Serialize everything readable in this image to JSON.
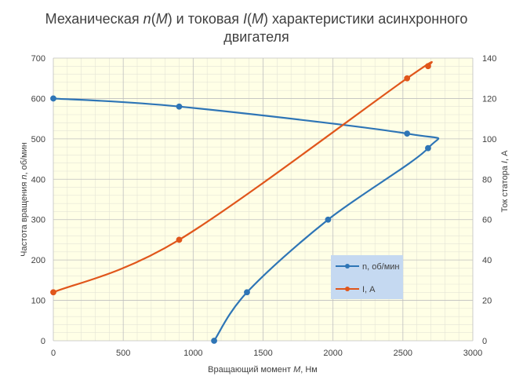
{
  "chart_data": {
    "type": "line",
    "title": {
      "line1_a": "Механическая ",
      "line1_n": "n",
      "line1_b": "(",
      "line1_m1": "M",
      "line1_c": ") и токовая  ",
      "line1_i": "I",
      "line1_d": "(",
      "line1_m2": "M",
      "line1_e": ") характеристики асинхронного",
      "line2": "двигателя"
    },
    "xlabel": {
      "a": "Вращающий момент ",
      "ital": "M",
      "b": ", Нм"
    },
    "ylabel": {
      "a": "Частота вращения ",
      "ital": "n",
      "b": ", об/мин"
    },
    "y2label": {
      "a": "Ток статора ",
      "ital": "I",
      "b": ", А"
    },
    "xlim": [
      0,
      3000
    ],
    "ylim": [
      0,
      700
    ],
    "y2lim": [
      0,
      140
    ],
    "x_ticks": [
      "0",
      "500",
      "1000",
      "1500",
      "2000",
      "2500",
      "3000"
    ],
    "y_ticks": [
      "0",
      "100",
      "200",
      "300",
      "400",
      "500",
      "600",
      "700"
    ],
    "y2_ticks": [
      "0",
      "20",
      "40",
      "60",
      "80",
      "100",
      "120",
      "140"
    ],
    "grid": true,
    "minor_grid": true,
    "legend_position": "right-center",
    "series": [
      {
        "name": "n, об/мин",
        "axis": "left",
        "color": "#2E75B6",
        "points": [
          [
            0,
            600
          ],
          [
            900,
            580
          ],
          [
            2530,
            513
          ],
          [
            2680,
            477
          ],
          [
            1965,
            300
          ],
          [
            1385,
            120
          ],
          [
            1150,
            0
          ]
        ]
      },
      {
        "name": "I, А",
        "axis": "right",
        "color": "#E0561B",
        "points": [
          [
            0,
            24
          ],
          [
            900,
            50
          ],
          [
            2530,
            130
          ],
          [
            2680,
            136
          ]
        ]
      }
    ]
  },
  "colors": {
    "plot_background": "#FFFFE6",
    "major_grid": "#BFBFBF",
    "minor_grid": "#E4E4D6",
    "legend_background": "#C5D9F1"
  }
}
